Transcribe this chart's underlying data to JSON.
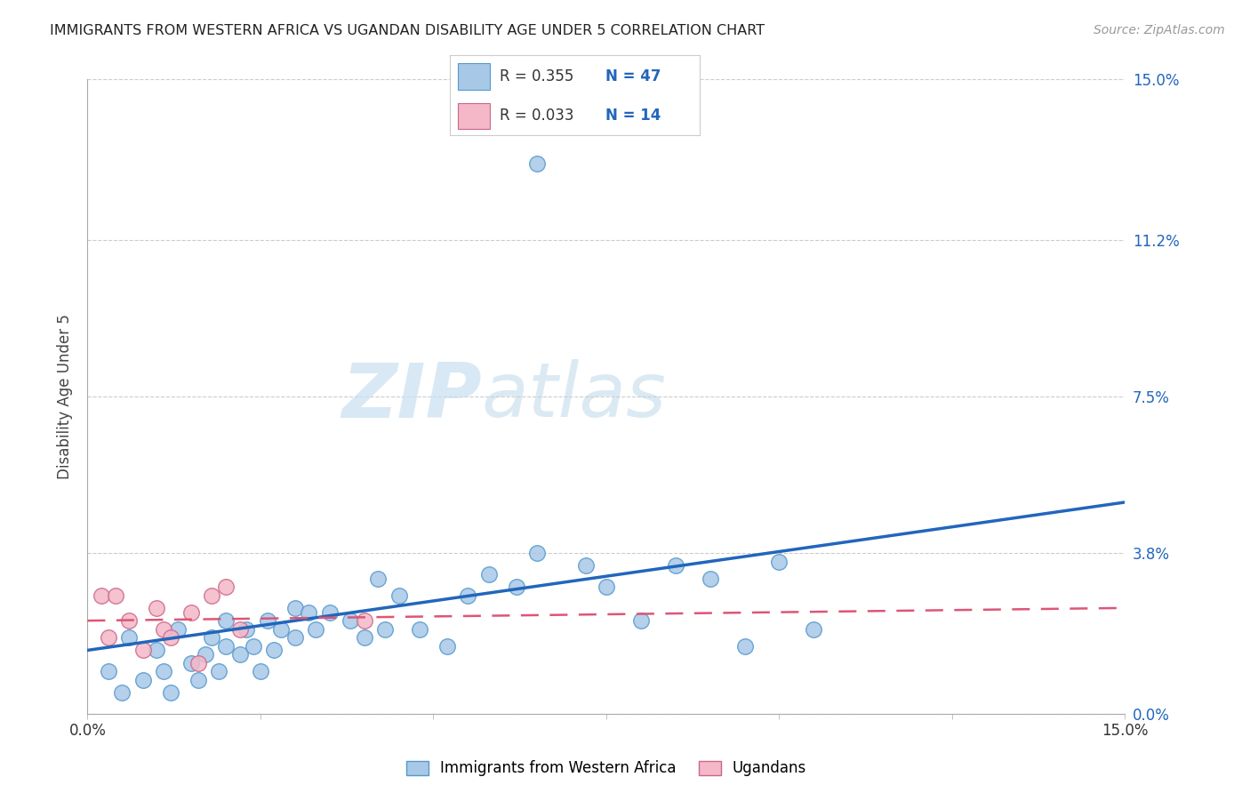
{
  "title": "IMMIGRANTS FROM WESTERN AFRICA VS UGANDAN DISABILITY AGE UNDER 5 CORRELATION CHART",
  "source": "Source: ZipAtlas.com",
  "ylabel": "Disability Age Under 5",
  "xlim": [
    0.0,
    0.15
  ],
  "ylim": [
    0.0,
    0.15
  ],
  "ytick_labels": [
    "15.0%",
    "11.2%",
    "7.5%",
    "3.8%",
    "0.0%"
  ],
  "ytick_values": [
    0.15,
    0.112,
    0.075,
    0.038,
    0.0
  ],
  "legend_blue_R": "R = 0.355",
  "legend_blue_N": "N = 47",
  "legend_pink_R": "R = 0.033",
  "legend_pink_N": "N = 14",
  "blue_label": "Immigrants from Western Africa",
  "pink_label": "Ugandans",
  "blue_color": "#a8c8e8",
  "pink_color": "#f4b8c8",
  "blue_edge_color": "#5599cc",
  "pink_edge_color": "#cc6688",
  "blue_line_color": "#2266bb",
  "pink_line_color": "#dd5577",
  "watermark_zip": "ZIP",
  "watermark_atlas": "atlas",
  "grid_color": "#cccccc",
  "background_color": "#ffffff",
  "blue_scatter_x": [
    0.003,
    0.005,
    0.006,
    0.008,
    0.01,
    0.011,
    0.012,
    0.013,
    0.015,
    0.016,
    0.017,
    0.018,
    0.019,
    0.02,
    0.02,
    0.022,
    0.023,
    0.024,
    0.025,
    0.026,
    0.027,
    0.028,
    0.03,
    0.03,
    0.032,
    0.033,
    0.035,
    0.038,
    0.04,
    0.042,
    0.043,
    0.045,
    0.048,
    0.052,
    0.055,
    0.058,
    0.062,
    0.065,
    0.075,
    0.08,
    0.085,
    0.09,
    0.095,
    0.1,
    0.105,
    0.065,
    0.072
  ],
  "blue_scatter_y": [
    0.01,
    0.005,
    0.018,
    0.008,
    0.015,
    0.01,
    0.005,
    0.02,
    0.012,
    0.008,
    0.014,
    0.018,
    0.01,
    0.022,
    0.016,
    0.014,
    0.02,
    0.016,
    0.01,
    0.022,
    0.015,
    0.02,
    0.025,
    0.018,
    0.024,
    0.02,
    0.024,
    0.022,
    0.018,
    0.032,
    0.02,
    0.028,
    0.02,
    0.016,
    0.028,
    0.033,
    0.03,
    0.038,
    0.03,
    0.022,
    0.035,
    0.032,
    0.016,
    0.036,
    0.02,
    0.13,
    0.035
  ],
  "pink_scatter_x": [
    0.002,
    0.003,
    0.004,
    0.006,
    0.008,
    0.01,
    0.011,
    0.012,
    0.015,
    0.016,
    0.018,
    0.02,
    0.022,
    0.04
  ],
  "pink_scatter_y": [
    0.028,
    0.018,
    0.028,
    0.022,
    0.015,
    0.025,
    0.02,
    0.018,
    0.024,
    0.012,
    0.028,
    0.03,
    0.02,
    0.022
  ],
  "blue_line_x": [
    0.0,
    0.15
  ],
  "blue_line_y": [
    0.015,
    0.05
  ],
  "pink_line_x": [
    0.0,
    0.15
  ],
  "pink_line_y": [
    0.022,
    0.025
  ]
}
